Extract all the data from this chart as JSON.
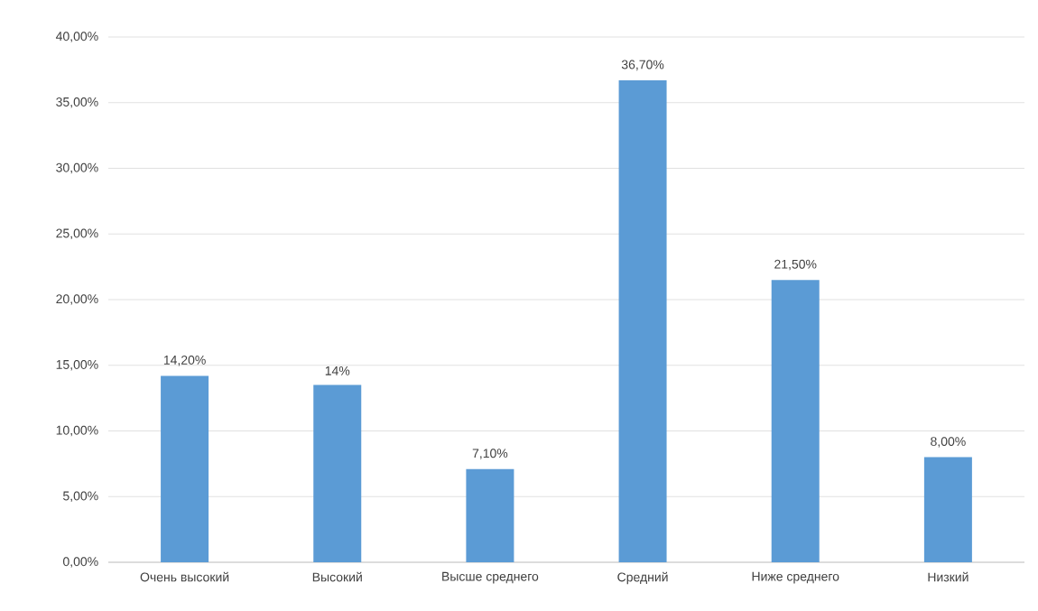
{
  "chart_data": {
    "type": "bar",
    "categories": [
      "Очень высокий",
      "Высокий",
      "Высше среднего",
      "Средний",
      "Ниже среднего",
      "Низкий"
    ],
    "values": [
      14.2,
      13.5,
      7.1,
      36.7,
      21.5,
      8.0
    ],
    "value_labels": [
      "14,20%",
      "14%",
      "7,10%",
      "36,70%",
      "21,50%",
      "8,00%"
    ],
    "color": "#5b9bd5",
    "ylim": [
      0,
      40
    ],
    "yticks": [
      {
        "value": 0,
        "label": "0,00%"
      },
      {
        "value": 5,
        "label": "5,00%"
      },
      {
        "value": 10,
        "label": "10,00%"
      },
      {
        "value": 15,
        "label": "15,00%"
      },
      {
        "value": 20,
        "label": "20,00%"
      },
      {
        "value": 25,
        "label": "25,00%"
      },
      {
        "value": 30,
        "label": "30,00%"
      },
      {
        "value": 35,
        "label": "35,00%"
      },
      {
        "value": 40,
        "label": "40,00%"
      }
    ],
    "grid": "y"
  }
}
